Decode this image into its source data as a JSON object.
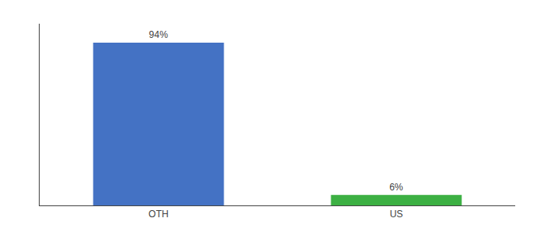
{
  "chart_data": {
    "type": "bar",
    "categories": [
      "OTH",
      "US"
    ],
    "values": [
      94,
      6
    ],
    "value_labels": [
      "94%",
      "6%"
    ],
    "data_labels": true,
    "colors": [
      "#4472C4",
      "#3CB043"
    ],
    "ylim": [
      0,
      105
    ],
    "yticks": [],
    "tick_labels": "x",
    "grid": false
  }
}
